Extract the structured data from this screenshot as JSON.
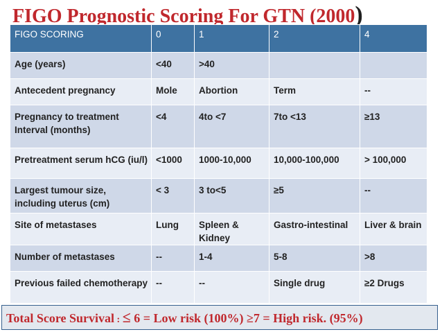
{
  "title": {
    "text": "FIGO  Prognostic Scoring For  GTN (2000",
    "paren": ")"
  },
  "table": {
    "header": [
      "FIGO SCORING",
      "0",
      "1",
      "2",
      "4"
    ],
    "rows": [
      [
        "Age (years)",
        "<40",
        ">40",
        "",
        ""
      ],
      [
        "Antecedent pregnancy",
        "Mole",
        "Abortion",
        "Term",
        "--"
      ],
      [
        "Pregnancy to treatment Interval (months)",
        "<4",
        "4to <7",
        "7to <13",
        "≥13"
      ],
      [
        "Pretreatment serum hCG (iu/l)",
        "<1000",
        "1000-10,000",
        "10,000-100,000",
        "> 100,000"
      ],
      [
        "Largest tumour size, including uterus (cm)",
        "< 3",
        "3 to<5",
        "≥5",
        "--"
      ],
      [
        "Site of metastases",
        "Lung",
        "Spleen & Kidney",
        "Gastro-intestinal",
        "Liver & brain"
      ],
      [
        "Number of metastases",
        "--",
        "1-4",
        "5-8",
        ">8"
      ],
      [
        "Previous failed chemotherapy",
        "--",
        "--",
        "Single drug",
        "≥2 Drugs"
      ]
    ]
  },
  "footer": {
    "label": "Total Score Survival",
    "separator": " : ",
    "le_symbol": "≤",
    "text": " 6 = Low risk (100%)  ≥7 = High risk. (95%)"
  },
  "colors": {
    "title": "#c0282d",
    "header_bg": "#3e72a1",
    "row_odd_bg": "#cfd8e8",
    "row_even_bg": "#e8edf5",
    "footer_text": "#c0282d"
  }
}
